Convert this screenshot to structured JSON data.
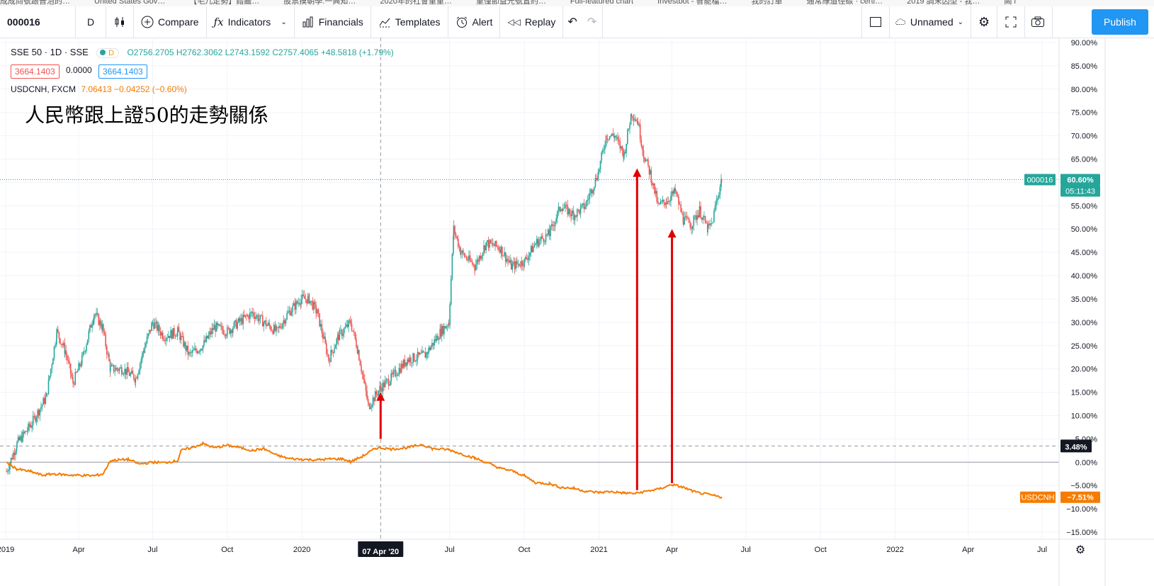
{
  "bookmarks": [
    "成成商號跟普泡的…",
    "United States Gov…",
    "【毛几走勢】錯繼…",
    "股票摸朝學:一興知…",
    "2020年的社會重重…",
    "重僅節益光號置約…",
    "Full-featured chart",
    "Investbot - 智能檔…",
    "我的訂單",
    "通常綠道徑碳 · certi…",
    "2019 調末因型 - 我…",
    "闕 i"
  ],
  "toolbar": {
    "symbol": "000016",
    "interval": "D",
    "compare": "Compare",
    "indicators": "Indicators",
    "financials": "Financials",
    "templates": "Templates",
    "alert": "Alert",
    "replay": "Replay",
    "layout_name": "Unnamed",
    "publish": "Publish"
  },
  "legend": {
    "main_title": "SSE 50 · 1D · SSE",
    "main_badge": "D",
    "ohlc": "O2756.2705  H2762.3062  L2743.1592  C2757.4065  +48.5818 (+1.79%)",
    "bid": "3664.1403",
    "spread": "0.0000",
    "ask": "3664.1403",
    "compare_title": "USDCNH, FXCM",
    "compare_values": "7.06413  −0.04252 (−0.60%)"
  },
  "annotation": "人民幣跟上證50的走勢關係",
  "price_labels": {
    "main_tag": "000016",
    "main_value": "60.60%",
    "countdown": "05:11:43",
    "crosshair_value": "3.48%",
    "compare_tag": "USDCNH",
    "compare_value": "−7.51%",
    "crosshair_date": "07 Apr '20"
  },
  "colors": {
    "up": "#26a69a",
    "down": "#ef5350",
    "compare_line": "#f57c00",
    "arrow": "#e00000",
    "accent": "#2196f3"
  },
  "chart_data": {
    "type": "line",
    "title": "",
    "xlabel": "",
    "ylabel": "",
    "y_unit": "percent change",
    "ylim": [
      -17,
      91
    ],
    "y_ticks": [
      90,
      85,
      80,
      75,
      70,
      65,
      60,
      55,
      50,
      45,
      40,
      35,
      30,
      25,
      20,
      15,
      10,
      5,
      0,
      -5,
      -10,
      -15
    ],
    "y_tick_labels": [
      "90.00%",
      "85.00%",
      "80.00%",
      "75.00%",
      "70.00%",
      "65.00%",
      "60.00%",
      "55.00%",
      "50.00%",
      "45.00%",
      "40.00%",
      "35.00%",
      "30.00%",
      "25.00%",
      "20.00%",
      "15.00%",
      "10.00%",
      "5.00%",
      "0.00%",
      "−5.00%",
      "−10.00%",
      "−15.00%"
    ],
    "x_ticks": [
      {
        "label": "2019",
        "date": "2019-01"
      },
      {
        "label": "Apr",
        "date": "2019-04"
      },
      {
        "label": "Jul",
        "date": "2019-07"
      },
      {
        "label": "Oct",
        "date": "2019-10"
      },
      {
        "label": "2020",
        "date": "2020-01"
      },
      {
        "label": "Jul",
        "date": "2020-07"
      },
      {
        "label": "Oct",
        "date": "2020-10"
      },
      {
        "label": "2021",
        "date": "2021-01"
      },
      {
        "label": "Apr",
        "date": "2021-04"
      },
      {
        "label": "Jul",
        "date": "2021-07"
      },
      {
        "label": "Oct",
        "date": "2021-10"
      },
      {
        "label": "2022",
        "date": "2022-01"
      },
      {
        "label": "Apr",
        "date": "2022-04"
      },
      {
        "label": "Jul",
        "date": "2022-07"
      }
    ],
    "series": [
      {
        "name": "SSE 50",
        "style": "candles",
        "points": [
          [
            "2019-01-02",
            -2
          ],
          [
            "2019-01-15",
            4
          ],
          [
            "2019-02-01",
            8
          ],
          [
            "2019-02-20",
            14
          ],
          [
            "2019-03-05",
            28
          ],
          [
            "2019-03-15",
            24
          ],
          [
            "2019-03-25",
            17
          ],
          [
            "2019-04-05",
            22
          ],
          [
            "2019-04-20",
            32
          ],
          [
            "2019-04-30",
            29
          ],
          [
            "2019-05-10",
            20
          ],
          [
            "2019-05-25",
            20
          ],
          [
            "2019-06-10",
            18
          ],
          [
            "2019-06-20",
            24
          ],
          [
            "2019-07-01",
            30
          ],
          [
            "2019-07-15",
            27
          ],
          [
            "2019-08-01",
            28
          ],
          [
            "2019-08-15",
            23
          ],
          [
            "2019-09-01",
            25
          ],
          [
            "2019-09-15",
            29
          ],
          [
            "2019-10-01",
            28
          ],
          [
            "2019-10-15",
            30
          ],
          [
            "2019-11-01",
            32
          ],
          [
            "2019-11-15",
            30
          ],
          [
            "2019-12-01",
            28
          ],
          [
            "2019-12-15",
            32
          ],
          [
            "2019-12-31",
            35
          ],
          [
            "2020-01-10",
            35
          ],
          [
            "2020-01-20",
            32
          ],
          [
            "2020-02-03",
            22
          ],
          [
            "2020-02-15",
            27
          ],
          [
            "2020-03-01",
            30
          ],
          [
            "2020-03-10",
            24
          ],
          [
            "2020-03-23",
            12
          ],
          [
            "2020-04-07",
            16
          ],
          [
            "2020-04-20",
            18
          ],
          [
            "2020-05-10",
            22
          ],
          [
            "2020-06-01",
            23
          ],
          [
            "2020-06-20",
            28
          ],
          [
            "2020-06-30",
            30
          ],
          [
            "2020-07-06",
            50
          ],
          [
            "2020-07-15",
            45
          ],
          [
            "2020-08-01",
            42
          ],
          [
            "2020-08-15",
            47
          ],
          [
            "2020-09-01",
            46
          ],
          [
            "2020-09-15",
            42
          ],
          [
            "2020-10-01",
            43
          ],
          [
            "2020-10-15",
            47
          ],
          [
            "2020-11-01",
            49
          ],
          [
            "2020-11-15",
            55
          ],
          [
            "2020-12-01",
            53
          ],
          [
            "2020-12-15",
            55
          ],
          [
            "2020-12-31",
            62
          ],
          [
            "2021-01-10",
            70
          ],
          [
            "2021-01-20",
            70
          ],
          [
            "2021-02-01",
            66
          ],
          [
            "2021-02-10",
            75
          ],
          [
            "2021-02-18",
            73
          ],
          [
            "2021-02-25",
            66
          ],
          [
            "2021-03-05",
            62
          ],
          [
            "2021-03-15",
            55
          ],
          [
            "2021-03-25",
            56
          ],
          [
            "2021-04-05",
            58
          ],
          [
            "2021-04-15",
            52
          ],
          [
            "2021-04-25",
            51
          ],
          [
            "2021-05-05",
            54
          ],
          [
            "2021-05-15",
            50
          ],
          [
            "2021-05-20",
            51
          ],
          [
            "2021-05-26",
            56
          ],
          [
            "2021-06-01",
            60.6
          ]
        ]
      },
      {
        "name": "USDCNH",
        "style": "line",
        "points": [
          [
            "2019-01-02",
            0
          ],
          [
            "2019-01-15",
            -1.5
          ],
          [
            "2019-02-01",
            -2
          ],
          [
            "2019-02-15",
            -2.8
          ],
          [
            "2019-03-01",
            -2.5
          ],
          [
            "2019-03-15",
            -2.7
          ],
          [
            "2019-04-01",
            -2.8
          ],
          [
            "2019-04-20",
            -2.9
          ],
          [
            "2019-05-01",
            -2.5
          ],
          [
            "2019-05-10",
            0.3
          ],
          [
            "2019-05-20",
            0.5
          ],
          [
            "2019-06-01",
            0.6
          ],
          [
            "2019-06-15",
            -0.4
          ],
          [
            "2019-07-01",
            0
          ],
          [
            "2019-07-15",
            -0.1
          ],
          [
            "2019-08-01",
            0.3
          ],
          [
            "2019-08-05",
            2.5
          ],
          [
            "2019-08-20",
            3.2
          ],
          [
            "2019-09-01",
            4
          ],
          [
            "2019-09-15",
            3.1
          ],
          [
            "2019-10-01",
            3.6
          ],
          [
            "2019-10-15",
            3.2
          ],
          [
            "2019-11-01",
            2.5
          ],
          [
            "2019-11-15",
            2.9
          ],
          [
            "2019-12-01",
            1.5
          ],
          [
            "2019-12-15",
            0.8
          ],
          [
            "2020-01-01",
            0.6
          ],
          [
            "2020-01-20",
            0.5
          ],
          [
            "2020-02-05",
            0.7
          ],
          [
            "2020-02-20",
            0.7
          ],
          [
            "2020-03-01",
            0.1
          ],
          [
            "2020-03-15",
            1.2
          ],
          [
            "2020-04-01",
            3
          ],
          [
            "2020-04-07",
            3.1
          ],
          [
            "2020-04-20",
            2.8
          ],
          [
            "2020-05-10",
            3.1
          ],
          [
            "2020-05-28",
            3.8
          ],
          [
            "2020-06-10",
            2.9
          ],
          [
            "2020-06-30",
            2.7
          ],
          [
            "2020-07-15",
            1.8
          ],
          [
            "2020-08-01",
            0.9
          ],
          [
            "2020-08-20",
            -0.4
          ],
          [
            "2020-09-01",
            -1.3
          ],
          [
            "2020-09-15",
            -1.8
          ],
          [
            "2020-10-01",
            -2.9
          ],
          [
            "2020-10-15",
            -4.4
          ],
          [
            "2020-11-01",
            -4.6
          ],
          [
            "2020-11-15",
            -5.4
          ],
          [
            "2020-12-01",
            -5.6
          ],
          [
            "2020-12-15",
            -6.2
          ],
          [
            "2021-01-01",
            -6.5
          ],
          [
            "2021-01-15",
            -6.3
          ],
          [
            "2021-02-01",
            -6.6
          ],
          [
            "2021-02-15",
            -6.7
          ],
          [
            "2021-03-01",
            -6.2
          ],
          [
            "2021-03-15",
            -5.8
          ],
          [
            "2021-04-01",
            -4.8
          ],
          [
            "2021-04-15",
            -5.4
          ],
          [
            "2021-05-01",
            -6.5
          ],
          [
            "2021-05-15",
            -6.9
          ],
          [
            "2021-06-01",
            -7.51
          ]
        ]
      }
    ],
    "arrows": [
      {
        "date": "2020-04-07",
        "from": 5,
        "to": 15
      },
      {
        "date": "2021-02-17",
        "from": -6,
        "to": 63
      },
      {
        "date": "2021-04-01",
        "from": -4.5,
        "to": 50
      }
    ],
    "crosshair": {
      "date": "2020-04-07",
      "value": 3.48
    },
    "last_value_line": 60.6,
    "grid": true
  }
}
